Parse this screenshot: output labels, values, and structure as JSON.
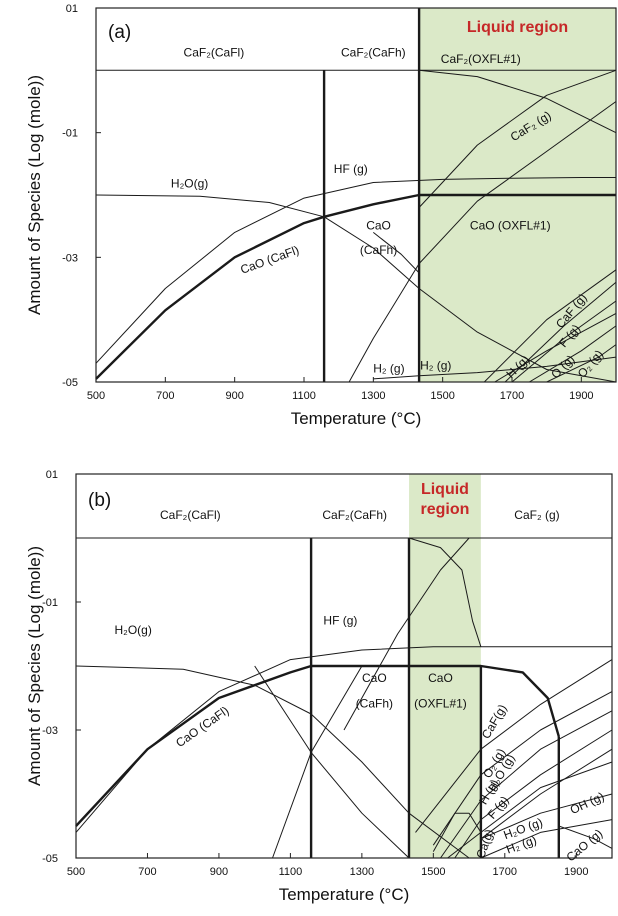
{
  "chart_data": [
    {
      "panel": "(a)",
      "type": "line",
      "xlabel": "Temperature (°C)",
      "ylabel": "Amount of Species (Log (mole))",
      "xlim": [
        500,
        2000
      ],
      "ylim": [
        -5,
        1
      ],
      "x_ticks": [
        "500",
        "700",
        "900",
        "1100",
        "1300",
        "1500",
        "1700",
        "1900"
      ],
      "y_ticks": [
        "01",
        "-01",
        "-03",
        "-05"
      ],
      "shaded_region": {
        "label": "Liquid region",
        "x_range": [
          1432,
          2000
        ],
        "color": "#dbe9c8"
      },
      "boundaries": [
        {
          "x": 1158,
          "y_range": [
            -5,
            0
          ]
        },
        {
          "x": 1432,
          "y_range": [
            -5,
            1
          ]
        }
      ],
      "labels": [
        {
          "text": "CaF₂(CaFl)",
          "x": 840,
          "y": 0.22
        },
        {
          "text": "CaF₂(CaFh)",
          "x": 1300,
          "y": 0.22
        },
        {
          "text": "CaF₂(OXFL#1)",
          "x": 1610,
          "y": 0.12
        },
        {
          "text": "CaF₂ (g)",
          "x": 1760,
          "y": -0.95,
          "rotate": -32
        },
        {
          "text": "HF (g)",
          "x": 1235,
          "y": -1.65
        },
        {
          "text": "H₂O(g)",
          "x": 770,
          "y": -1.88
        },
        {
          "text": "CaO",
          "x": 1315,
          "y": -2.55
        },
        {
          "text": "(CaFh)",
          "x": 1315,
          "y": -2.95
        },
        {
          "text": "CaO (CaFl)",
          "x": 1005,
          "y": -3.1,
          "rotate": -20
        },
        {
          "text": "CaO  (OXFL#1)",
          "x": 1695,
          "y": -2.55
        },
        {
          "text": "CaF (g)",
          "x": 1880,
          "y": -3.9,
          "rotate": -50
        },
        {
          "text": "F (g)",
          "x": 1875,
          "y": -4.3,
          "rotate": -50
        },
        {
          "text": "H (g)",
          "x": 1725,
          "y": -4.8,
          "rotate": -45
        },
        {
          "text": "O (g)",
          "x": 1855,
          "y": -4.8,
          "rotate": -45
        },
        {
          "text": "O₂ (g)",
          "x": 1935,
          "y": -4.75,
          "rotate": -50
        },
        {
          "text": "H₂ (g)",
          "x": 1345,
          "y": -4.85
        },
        {
          "text": "H₂ (g)",
          "x": 1480,
          "y": -4.8
        }
      ],
      "series": [
        {
          "id": "caf2-top",
          "style": "thin",
          "x": [
            500,
            1432,
            2000
          ],
          "y": [
            0,
            0,
            0
          ]
        },
        {
          "id": "caf2-oxfl-descent",
          "style": "thin",
          "x": [
            1432,
            1600,
            1800,
            2000
          ],
          "y": [
            0,
            -0.1,
            -0.45,
            -1.0
          ]
        },
        {
          "id": "caf2-g",
          "style": "thin",
          "x": [
            1432,
            1600,
            1800,
            2000
          ],
          "y": [
            -2.2,
            -1.2,
            -0.4,
            0.0
          ]
        },
        {
          "id": "hf-g",
          "style": "thin",
          "x": [
            500,
            700,
            900,
            1100,
            1300,
            1500,
            1700,
            1900,
            2000
          ],
          "y": [
            -4.7,
            -3.5,
            -2.6,
            -2.05,
            -1.8,
            -1.75,
            -1.73,
            -1.72,
            -1.72
          ]
        },
        {
          "id": "h2o-g",
          "style": "thin",
          "x": [
            500,
            800,
            1000,
            1158,
            1300,
            1432,
            1600,
            1800,
            2000
          ],
          "y": [
            -2.0,
            -2.02,
            -2.12,
            -2.35,
            -2.85,
            -3.5,
            -4.2,
            -4.8,
            -5.0
          ]
        },
        {
          "id": "cao-cafl",
          "style": "thick",
          "x": [
            500,
            700,
            900,
            1100,
            1158
          ],
          "y": [
            -4.95,
            -3.85,
            -3.0,
            -2.45,
            -2.35
          ]
        },
        {
          "id": "cao-cafh",
          "style": "thick",
          "x": [
            1158,
            1300,
            1432
          ],
          "y": [
            -2.35,
            -2.15,
            -2.0
          ]
        },
        {
          "id": "cao-oxfl",
          "style": "thick",
          "x": [
            1432,
            2000
          ],
          "y": [
            -2.0,
            -2.0
          ]
        },
        {
          "id": "v-1158",
          "style": "thick",
          "x": [
            1158,
            1158
          ],
          "y": [
            0,
            -5
          ]
        },
        {
          "id": "v-1432",
          "style": "thick",
          "x": [
            1432,
            1432
          ],
          "y": [
            1,
            -5
          ]
        },
        {
          "id": "cao-oxfl-rise",
          "style": "thin",
          "x": [
            1230,
            1300,
            1432
          ],
          "y": [
            -5,
            -4.3,
            -3.1
          ]
        },
        {
          "id": "oxfl-upper",
          "style": "thin",
          "x": [
            1432,
            1600,
            1800,
            2000
          ],
          "y": [
            -3.1,
            -2.1,
            -1.3,
            -0.5
          ]
        },
        {
          "id": "cafh-crossing",
          "style": "thin",
          "x": [
            1300,
            1380,
            1432
          ],
          "y": [
            -2.6,
            -2.95,
            -3.25
          ]
        },
        {
          "id": "h2-g",
          "style": "thin",
          "x": [
            1300,
            1432,
            1600,
            1800,
            2000
          ],
          "y": [
            -4.95,
            -4.9,
            -4.85,
            -4.75,
            -4.6
          ]
        },
        {
          "id": "caf-g",
          "style": "thin",
          "x": [
            1620,
            1800,
            2000
          ],
          "y": [
            -5,
            -4.0,
            -3.2
          ]
        },
        {
          "id": "f-g",
          "style": "thin",
          "x": [
            1680,
            1850,
            2000
          ],
          "y": [
            -5,
            -4.1,
            -3.4
          ]
        },
        {
          "id": "h-g",
          "style": "thin",
          "x": [
            1650,
            1800,
            2000
          ],
          "y": [
            -5,
            -4.5,
            -3.9
          ]
        },
        {
          "id": "o-g",
          "style": "thin",
          "x": [
            1750,
            1900,
            2000
          ],
          "y": [
            -5,
            -4.5,
            -4.1
          ]
        },
        {
          "id": "o2-g",
          "style": "thin",
          "x": [
            1800,
            1950,
            2000
          ],
          "y": [
            -5,
            -4.6,
            -4.4
          ]
        },
        {
          "id": "oh-g",
          "style": "thin",
          "x": [
            1700,
            1850,
            2000
          ],
          "y": [
            -5,
            -4.3,
            -3.7
          ]
        }
      ]
    },
    {
      "panel": "(b)",
      "type": "line",
      "xlabel": "Temperature (°C)",
      "ylabel": "Amount of Species (Log (mole))",
      "xlim": [
        500,
        2000
      ],
      "ylim": [
        -5,
        1
      ],
      "x_ticks": [
        "500",
        "700",
        "900",
        "1100",
        "1300",
        "1500",
        "1700",
        "1900"
      ],
      "y_ticks": [
        "01",
        "-01",
        "-03",
        "-05"
      ],
      "shaded_region": {
        "label_lines": [
          "Liquid",
          "region"
        ],
        "x_range": [
          1432,
          1633
        ],
        "color": "#dbe9c8"
      },
      "boundaries": [
        {
          "x": 1158,
          "y_range": [
            -5,
            0
          ]
        },
        {
          "x": 1432,
          "y_range": [
            -5,
            0
          ]
        },
        {
          "x": 1633,
          "y_range": [
            -5,
            -2
          ]
        },
        {
          "x": 1851,
          "y_range": [
            -5,
            -3.1
          ]
        }
      ],
      "labels": [
        {
          "text": "CaF₂(CaFl)",
          "x": 820,
          "y": 0.3
        },
        {
          "text": "CaF₂(CaFh)",
          "x": 1280,
          "y": 0.3
        },
        {
          "text": "CaF₂ (g)",
          "x": 1790,
          "y": 0.3
        },
        {
          "text": "H₂O(g)",
          "x": 660,
          "y": -1.5
        },
        {
          "text": "HF (g)",
          "x": 1240,
          "y": -1.35
        },
        {
          "text": "CaO",
          "x": 1335,
          "y": -2.25
        },
        {
          "text": "(CaFh)",
          "x": 1335,
          "y": -2.65
        },
        {
          "text": "CaO",
          "x": 1520,
          "y": -2.25
        },
        {
          "text": "(OXFL#1)",
          "x": 1520,
          "y": -2.65
        },
        {
          "text": "CaO (CaFl)",
          "x": 860,
          "y": -3.0,
          "rotate": -35
        },
        {
          "text": "CaF(g)",
          "x": 1680,
          "y": -2.9,
          "rotate": -60
        },
        {
          "text": "O₂ (g)",
          "x": 1680,
          "y": -3.55,
          "rotate": -60
        },
        {
          "text": "H₂O (g)",
          "x": 1700,
          "y": -3.7,
          "rotate": -60
        },
        {
          "text": "H (g)",
          "x": 1665,
          "y": -4.0,
          "rotate": -60
        },
        {
          "text": "F (g)",
          "x": 1690,
          "y": -4.25,
          "rotate": -50
        },
        {
          "text": "OH (g)",
          "x": 1935,
          "y": -4.2,
          "rotate": -25
        },
        {
          "text": "Ca(g)",
          "x": 1655,
          "y": -4.8,
          "rotate": -70
        },
        {
          "text": "H₂O (g)",
          "x": 1755,
          "y": -4.6,
          "rotate": -20
        },
        {
          "text": "H₂ (g)",
          "x": 1750,
          "y": -4.85,
          "rotate": -20
        },
        {
          "text": "CaO (g)",
          "x": 1930,
          "y": -4.85,
          "rotate": -40
        }
      ],
      "series": [
        {
          "id": "caf2-top",
          "style": "thin",
          "x": [
            500,
            1432,
            1633,
            2000
          ],
          "y": [
            0,
            0,
            0,
            0
          ]
        },
        {
          "id": "caf2-liquid-drop",
          "style": "thin",
          "x": [
            1432,
            1520,
            1580,
            1610,
            1633
          ],
          "y": [
            0,
            -0.15,
            -0.5,
            -1.3,
            -1.7
          ]
        },
        {
          "id": "caf2-g-rise",
          "style": "thin",
          "x": [
            1250,
            1400,
            1520,
            1600,
            1633
          ],
          "y": [
            -3.0,
            -1.5,
            -0.5,
            0,
            0
          ]
        },
        {
          "id": "hf-g",
          "style": "thin",
          "x": [
            500,
            700,
            900,
            1100,
            1300,
            1500,
            1700,
            1900,
            2000
          ],
          "y": [
            -4.6,
            -3.3,
            -2.4,
            -1.9,
            -1.75,
            -1.7,
            -1.7,
            -1.7,
            -1.7
          ]
        },
        {
          "id": "h2o-g",
          "style": "thin",
          "x": [
            500,
            800,
            1000,
            1158,
            1300,
            1432,
            1600
          ],
          "y": [
            -2.0,
            -2.05,
            -2.3,
            -2.75,
            -3.5,
            -4.3,
            -5.0
          ]
        },
        {
          "id": "cao-cafl",
          "style": "thick",
          "x": [
            500,
            700,
            900,
            1100,
            1158
          ],
          "y": [
            -4.5,
            -3.3,
            -2.5,
            -2.1,
            -2.0
          ]
        },
        {
          "id": "cao-cafh",
          "style": "thick",
          "x": [
            1158,
            1300,
            1432
          ],
          "y": [
            -2.0,
            -2.0,
            -2.0
          ]
        },
        {
          "id": "cao-oxfl",
          "style": "thick",
          "x": [
            1432,
            1633,
            1750,
            1820,
            1851
          ],
          "y": [
            -2.0,
            -2.0,
            -2.1,
            -2.5,
            -3.1
          ]
        },
        {
          "id": "v-1158",
          "style": "thick",
          "x": [
            1158,
            1158
          ],
          "y": [
            0,
            -5
          ]
        },
        {
          "id": "v-1432",
          "style": "thick",
          "x": [
            1432,
            1432
          ],
          "y": [
            0,
            -5
          ]
        },
        {
          "id": "v-1633",
          "style": "thick",
          "x": [
            1633,
            1633
          ],
          "y": [
            -2.0,
            -5
          ]
        },
        {
          "id": "v-1851",
          "style": "thick",
          "x": [
            1851,
            1851
          ],
          "y": [
            -3.1,
            -5
          ]
        },
        {
          "id": "cafl-descent",
          "style": "thin",
          "x": [
            1000,
            1158,
            1300,
            1432
          ],
          "y": [
            -2.0,
            -3.35,
            -4.3,
            -5.0
          ]
        },
        {
          "id": "cafh-rise",
          "style": "thin",
          "x": [
            1050,
            1158,
            1300
          ],
          "y": [
            -5.0,
            -3.35,
            -2.0
          ]
        },
        {
          "id": "caf-g",
          "style": "thin",
          "x": [
            1450,
            1633,
            1800,
            2000
          ],
          "y": [
            -4.6,
            -3.3,
            -2.6,
            -1.9
          ]
        },
        {
          "id": "o2-g",
          "style": "thin",
          "x": [
            1500,
            1633,
            1800,
            2000
          ],
          "y": [
            -4.8,
            -3.7,
            -3.0,
            -2.4
          ]
        },
        {
          "id": "h-g",
          "style": "thin",
          "x": [
            1520,
            1633,
            1800,
            2000
          ],
          "y": [
            -5.0,
            -4.1,
            -3.3,
            -2.7
          ]
        },
        {
          "id": "f-g",
          "style": "thin",
          "x": [
            1560,
            1633,
            1800,
            2000
          ],
          "y": [
            -5.0,
            -4.4,
            -3.7,
            -3.0
          ]
        },
        {
          "id": "oh-g",
          "style": "thin",
          "x": [
            1633,
            1800,
            2000
          ],
          "y": [
            -4.7,
            -4.0,
            -3.3
          ]
        },
        {
          "id": "ca-g",
          "style": "thin",
          "x": [
            1540,
            1633,
            1800,
            2000
          ],
          "y": [
            -5.0,
            -4.6,
            -3.9,
            -3.5
          ]
        },
        {
          "id": "h2o-g-hi",
          "style": "thin",
          "x": [
            1633,
            1800,
            2000
          ],
          "y": [
            -4.7,
            -4.3,
            -4.0
          ]
        },
        {
          "id": "h2-g",
          "style": "thin",
          "x": [
            1633,
            1800,
            2000
          ],
          "y": [
            -5.0,
            -4.6,
            -4.4
          ]
        },
        {
          "id": "cao-g",
          "style": "thin",
          "x": [
            1851,
            1950,
            2000
          ],
          "y": [
            -4.5,
            -4.7,
            -4.85
          ]
        },
        {
          "id": "bump",
          "style": "thin",
          "x": [
            1500,
            1560,
            1600,
            1633
          ],
          "y": [
            -4.9,
            -4.3,
            -4.3,
            -4.6
          ]
        }
      ]
    }
  ]
}
